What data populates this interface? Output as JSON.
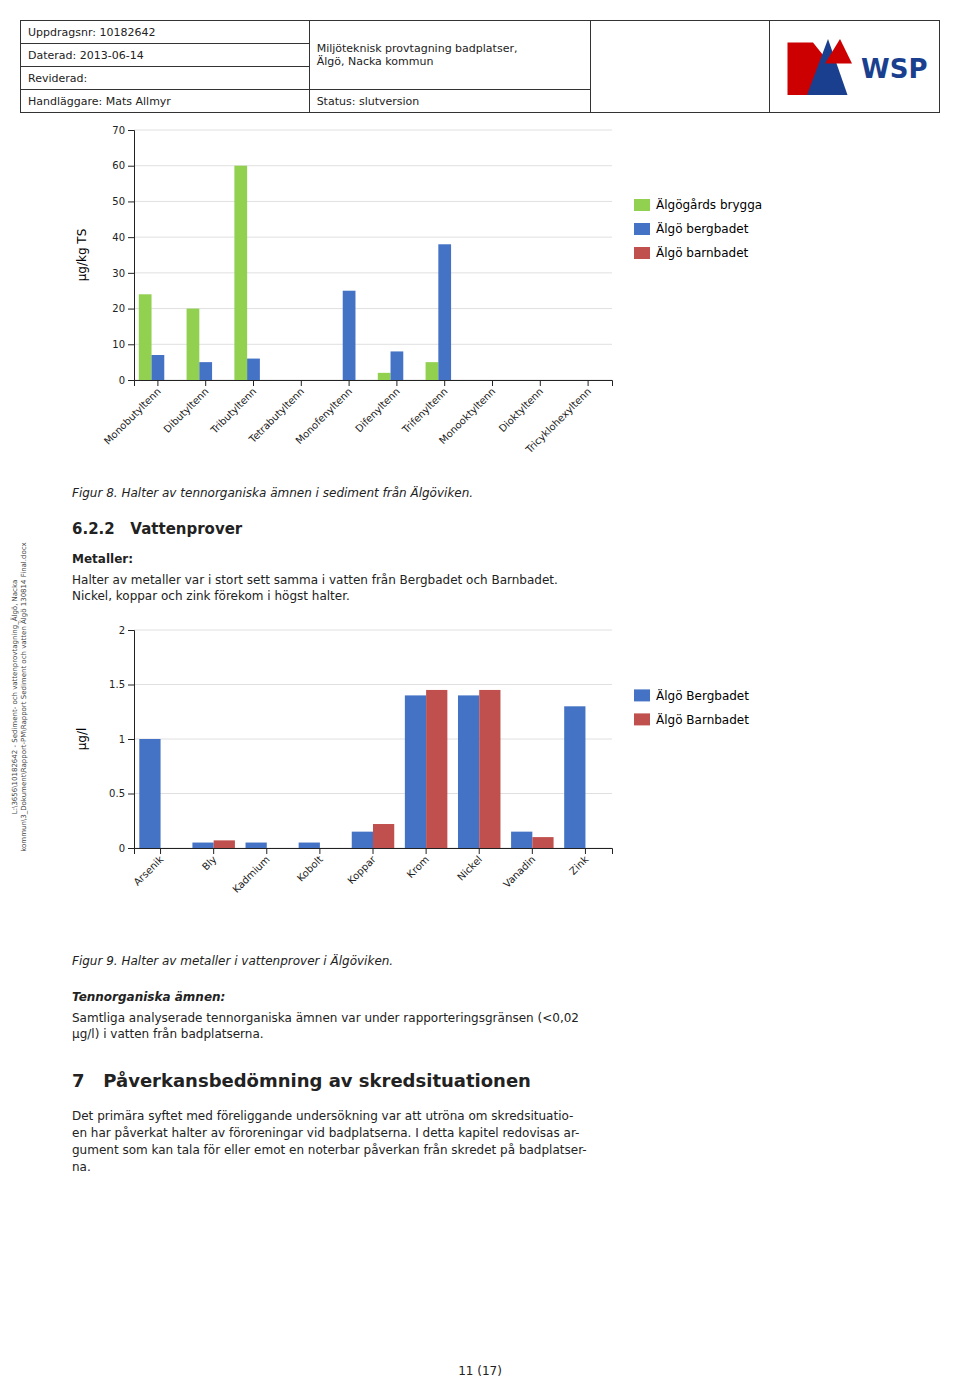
{
  "header": {
    "uppdragsnr": "Uppdragsnr: 10182642",
    "project": "Miljöteknisk provtagning badplatser,\nÄlgö, Nacka kommun",
    "daterad": "Daterad: 2013-06-14",
    "reviderad": "Reviderad:",
    "handlaggare": "Handläggare: Mats Allmyr",
    "status": "Status: slutversion",
    "logo": "WSP"
  },
  "chart_data": [
    {
      "type": "bar",
      "title": "Figur 8. Halter av tennorganiska ämnen i sediment från Älgöviken.",
      "ylabel": "µg/kg TS",
      "categories": [
        "Monobutyltenn",
        "Dibutyltenn",
        "Tributyltenn",
        "Tetrabutyltenn",
        "Monofenyltenn",
        "Difenyltenn",
        "Trifenyltenn",
        "Monooktyltenn",
        "Dioktyltenn",
        "Tricyklohexyltenn"
      ],
      "series": [
        {
          "name": "Älgögårds brygga",
          "color": "#92D050",
          "values": [
            24,
            20,
            60,
            0,
            0,
            2,
            5,
            0,
            0,
            0
          ]
        },
        {
          "name": "Älgö bergbadet",
          "color": "#4472C4",
          "values": [
            7,
            5,
            6,
            0,
            25,
            8,
            38,
            0,
            0,
            0
          ]
        },
        {
          "name": "Älgö barnbadet",
          "color": "#C0504D",
          "values": [
            0,
            0,
            0,
            0,
            0,
            0,
            0,
            0,
            0,
            0
          ]
        }
      ],
      "ylim": [
        0,
        70
      ],
      "yticks": [
        0,
        10,
        20,
        30,
        40,
        50,
        60,
        70
      ],
      "grid": true,
      "legend": "right"
    },
    {
      "type": "bar",
      "title": "Figur 9. Halter av metaller i vattenprover i Älgöviken.",
      "ylabel": "µg/l",
      "categories": [
        "Arsenik",
        "Bly",
        "Kadmium",
        "Kobolt",
        "Koppar",
        "Krom",
        "Nickel",
        "Vanadin",
        "Zink"
      ],
      "series": [
        {
          "name": "Älgö Bergbadet",
          "color": "#4472C4",
          "values": [
            1.0,
            0.05,
            0.05,
            0.05,
            0.15,
            1.4,
            1.4,
            0.15,
            1.3
          ]
        },
        {
          "name": "Älgö Barnbadet",
          "color": "#C0504D",
          "values": [
            0,
            0.07,
            0,
            0,
            0.22,
            1.45,
            1.45,
            0.1,
            0
          ]
        }
      ],
      "ylim": [
        0,
        2
      ],
      "yticks": [
        0,
        0.5,
        1,
        1.5,
        2
      ],
      "grid": true,
      "legend": "right"
    }
  ],
  "section_622": {
    "title": "6.2.2   Vattenprover",
    "metaller_heading": "Metaller:",
    "metaller_text": "Halter av metaller var i stort sett samma i vatten från Bergbadet och Barnbadet.\nNickel, koppar och zink förekom i högst halter."
  },
  "tennorganiska": {
    "heading": "Tennorganiska ämnen:",
    "text": "Samtliga analyserade tennorganiska ämnen var under rapporteringsgränsen (<0,02\nµg/l) i vatten från badplatserna."
  },
  "section7": {
    "title": "7   Påverkansbedömning av skredsituationen",
    "text": "Det primära syftet med föreliggande undersökning var att utröna om skredsituatio-\nen har påverkat halter av föroreningar vid badplatserna. I detta kapitel redovisas ar-\ngument som kan tala för eller emot en noterbar påverkan från skredet på badplatser-\nna."
  },
  "sidebar_text": "L:\\3656\\10182642 - Sediment- och vattenprovtagning_Älgö, Nacka\nkommun\\3_Dokument\\Rapport-PM\\Rapport Sediment och vatten Älgö 130814 Final.docx",
  "page_footer": "11 (17)"
}
